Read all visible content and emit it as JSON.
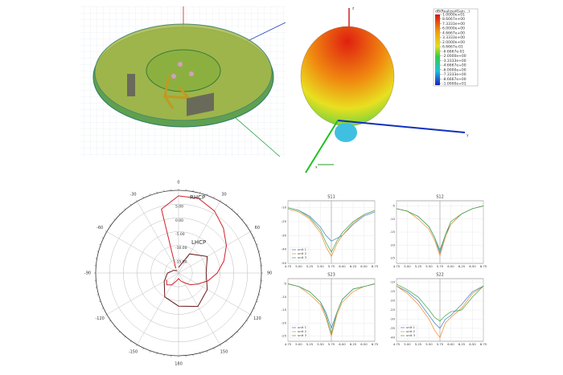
{
  "pattern": {
    "legend_title": "dB(RealizedGain...)",
    "colorbar": [
      {
        "value": 10,
        "label": "1.0000e+01"
      },
      {
        "value": 8.6667,
        "label": "8.6667e+00"
      },
      {
        "value": 7.3333,
        "label": "7.3333e+00"
      },
      {
        "value": 6,
        "label": "6.0000e+00"
      },
      {
        "value": 4.6667,
        "label": "4.6667e+00"
      },
      {
        "value": 3.3333,
        "label": "3.3333e+00"
      },
      {
        "value": 2,
        "label": "2.0000e+00"
      },
      {
        "value": 0.6667,
        "label": "6.6667e-01"
      },
      {
        "value": -0.6667,
        "label": "-6.6667e-01"
      },
      {
        "value": -2,
        "label": "-2.0000e+00"
      },
      {
        "value": -3.3333,
        "label": "-3.3333e+00"
      },
      {
        "value": -4.6667,
        "label": "-4.6667e+00"
      },
      {
        "value": -6,
        "label": "-6.0000e+00"
      },
      {
        "value": -7.3333,
        "label": "-7.3333e+00"
      },
      {
        "value": -8.6667,
        "label": "-8.6667e+00"
      },
      {
        "value": -10,
        "label": "-1.0000e+01"
      }
    ],
    "axis_labels": [
      "z",
      "y",
      "x"
    ]
  },
  "chart_data": [
    {
      "type": "polar",
      "annotations": [
        "RHCP",
        "LHCP"
      ],
      "rlim": [
        -20,
        10
      ],
      "rticks": [
        {
          "value": 5,
          "label": "5.00"
        },
        {
          "value": 0,
          "label": "0.00"
        },
        {
          "value": -5,
          "label": "-5.00"
        },
        {
          "value": -10,
          "label": "-10.00"
        },
        {
          "value": -15,
          "label": "-15.00"
        }
      ],
      "thetaticks": [
        0,
        30,
        60,
        90,
        120,
        150,
        180,
        -150,
        -120,
        -90,
        -60,
        -30
      ],
      "series": [
        {
          "color": "#d0202a",
          "theta": [
            -30,
            -15,
            0,
            15,
            30,
            45,
            60,
            75,
            90,
            105,
            120,
            135,
            150,
            165,
            180,
            -165,
            -150,
            -135,
            -120
          ],
          "r": [
            -18,
            4,
            8,
            8,
            6,
            3,
            0,
            -3,
            -6,
            -9,
            -12,
            -14,
            -16,
            -17,
            -18,
            -17,
            -15,
            -14,
            -15
          ]
        },
        {
          "color": "#6a1a1a",
          "theta": [
            0,
            30,
            60,
            90,
            120,
            150,
            180,
            -150,
            -120,
            -90,
            -60,
            -30
          ],
          "r": [
            -18,
            -12,
            -8,
            -10,
            -8,
            -6,
            -8,
            -10,
            -14,
            -16,
            -18,
            -19
          ]
        }
      ]
    },
    {
      "type": "line",
      "title": "S11",
      "xlim": [
        4.75,
        6.75
      ],
      "ylim": [
        -50,
        -5
      ],
      "legend": "lower left",
      "xticks": [
        4.75,
        {
          "value": 5,
          "label": "5.00"
        },
        5.25,
        {
          "value": 5.5,
          "label": "5.50"
        },
        5.75,
        {
          "value": 6,
          "label": "6.00"
        },
        6.25,
        {
          "value": 6.5,
          "label": "6.50"
        },
        6.75
      ],
      "yticks": [
        -10,
        -20,
        -30,
        -40,
        -50
      ],
      "x": [
        4.75,
        5,
        5.25,
        5.5,
        5.625,
        5.75,
        5.875,
        6,
        6.25,
        6.5,
        6.75
      ],
      "series": [
        {
          "name": "unit 1",
          "color": "#3a7fc1",
          "values": [
            -10,
            -12,
            -16,
            -24,
            -30,
            -34,
            -32,
            -30,
            -22,
            -16,
            -13
          ]
        },
        {
          "name": "unit 2",
          "color": "#f08a2c",
          "values": [
            -11,
            -13,
            -18,
            -28,
            -38,
            -45,
            -36,
            -30,
            -21,
            -15,
            -12
          ]
        },
        {
          "name": "unit 3",
          "color": "#3aa54a",
          "values": [
            -10,
            -12,
            -17,
            -26,
            -35,
            -42,
            -34,
            -28,
            -20,
            -15,
            -12
          ]
        }
      ]
    },
    {
      "type": "line",
      "title": "S12",
      "xlim": [
        4.75,
        6.75
      ],
      "ylim": [
        -27,
        -3
      ],
      "xticks": [
        4.75,
        {
          "value": 5,
          "label": "5.00"
        },
        5.25,
        {
          "value": 5.5,
          "label": "5.50"
        },
        5.75,
        {
          "value": 6,
          "label": "6.00"
        },
        6.25,
        {
          "value": 6.5,
          "label": "6.50"
        },
        6.75
      ],
      "yticks": [
        -5,
        -10,
        -15,
        -20,
        -25
      ],
      "x": [
        4.75,
        5,
        5.25,
        5.5,
        5.625,
        5.75,
        5.875,
        6,
        6.25,
        6.5,
        6.75
      ],
      "series": [
        {
          "color": "#3a7fc1",
          "values": [
            -6,
            -7,
            -9,
            -13,
            -17,
            -23,
            -16,
            -12,
            -8,
            -6,
            -5
          ]
        },
        {
          "color": "#f08a2c",
          "values": [
            -6,
            -7,
            -10,
            -14,
            -18,
            -24,
            -17,
            -12,
            -8,
            -6,
            -5
          ]
        },
        {
          "color": "#3aa54a",
          "values": [
            -6,
            -7,
            -9,
            -13,
            -17,
            -22,
            -16,
            -11,
            -8,
            -6,
            -5
          ]
        }
      ]
    },
    {
      "type": "line",
      "title": "S23",
      "xlim": [
        4.75,
        6.75
      ],
      "ylim": [
        -27,
        -3
      ],
      "legend": "lower left",
      "xticks": [
        4.75,
        {
          "value": 5,
          "label": "5.00"
        },
        5.25,
        {
          "value": 5.5,
          "label": "5.50"
        },
        5.75,
        {
          "value": 6,
          "label": "6.00"
        },
        6.25,
        {
          "value": 6.5,
          "label": "6.50"
        },
        6.75
      ],
      "yticks": [
        -5,
        -10,
        -15,
        -20,
        -25
      ],
      "x": [
        4.75,
        5,
        5.25,
        5.5,
        5.625,
        5.75,
        5.875,
        6,
        6.25,
        6.5,
        6.75
      ],
      "series": [
        {
          "name": "unit 1",
          "color": "#3a7fc1",
          "values": [
            -5,
            -6,
            -8,
            -12,
            -16,
            -22,
            -16,
            -11,
            -7,
            -6,
            -5
          ]
        },
        {
          "name": "unit 2",
          "color": "#f08a2c",
          "values": [
            -5,
            -6,
            -9,
            -13,
            -18,
            -25,
            -17,
            -12,
            -8,
            -6,
            -5
          ]
        },
        {
          "name": "unit 3",
          "color": "#3aa54a",
          "values": [
            -5,
            -6,
            -8,
            -12,
            -17,
            -24,
            -16,
            -11,
            -7,
            -6,
            -5
          ]
        }
      ]
    },
    {
      "type": "line",
      "title": "S22",
      "xlim": [
        4.75,
        6.75
      ],
      "ylim": [
        -42,
        -8
      ],
      "legend": "lower left",
      "xticks": [
        4.75,
        {
          "value": 5,
          "label": "5.00"
        },
        5.25,
        {
          "value": 5.5,
          "label": "5.50"
        },
        5.75,
        {
          "value": 6,
          "label": "6.00"
        },
        6.25,
        {
          "value": 6.5,
          "label": "6.50"
        },
        6.75
      ],
      "yticks": [
        -10,
        -15,
        -20,
        -25,
        -30,
        -35,
        -40
      ],
      "x": [
        4.75,
        5,
        5.25,
        5.5,
        5.625,
        5.75,
        5.875,
        6,
        6.25,
        6.5,
        6.75
      ],
      "series": [
        {
          "name": "unit 1",
          "color": "#3a7fc1",
          "values": [
            -12,
            -15,
            -20,
            -28,
            -32,
            -35,
            -30,
            -28,
            -22,
            -15,
            -12
          ]
        },
        {
          "name": "unit 2",
          "color": "#f08a2c",
          "values": [
            -12,
            -16,
            -22,
            -30,
            -36,
            -40,
            -32,
            -29,
            -24,
            -16,
            -12
          ]
        },
        {
          "name": "unit 3",
          "color": "#3aa54a",
          "values": [
            -11,
            -14,
            -18,
            -25,
            -29,
            -31,
            -28,
            -26,
            -25,
            -18,
            -12
          ]
        }
      ]
    }
  ]
}
